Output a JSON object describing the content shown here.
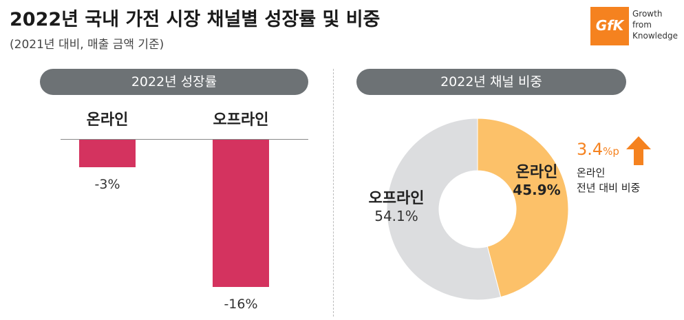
{
  "header": {
    "title": "2022년 국내 가전 시장 채널별 성장률 및 비중",
    "subtitle": "(2021년 대비, 매출 금액 기준)"
  },
  "logo": {
    "mark": "GfK",
    "tagline": [
      "Growth",
      "from",
      "Knowledge"
    ],
    "color": "#f5821f"
  },
  "panels": {
    "left_title": "2022년 성장률",
    "right_title": "2022년 채널 비중"
  },
  "chart_data": [
    {
      "type": "bar",
      "title": "2022년 성장률",
      "categories": [
        "온라인",
        "오프라인"
      ],
      "values": [
        -3,
        -16
      ],
      "value_labels": [
        "-3%",
        "-16%"
      ],
      "ylim": [
        -16,
        0
      ],
      "color": "#d4335f",
      "grid": false
    },
    {
      "type": "pie",
      "title": "2022년 채널 비중",
      "slices": [
        {
          "label": "온라인",
          "value": 45.9,
          "value_label": "45.9%",
          "color": "#fcc169"
        },
        {
          "label": "오프라인",
          "value": 54.1,
          "value_label": "54.1%",
          "color": "#dcdddf"
        }
      ]
    }
  ],
  "annotation": {
    "value": "3.4",
    "unit": "%p",
    "note_line1": "온라인",
    "note_line2": "전년 대비 비중",
    "arrow_icon": "arrow-up-icon",
    "color": "#f5821f"
  }
}
